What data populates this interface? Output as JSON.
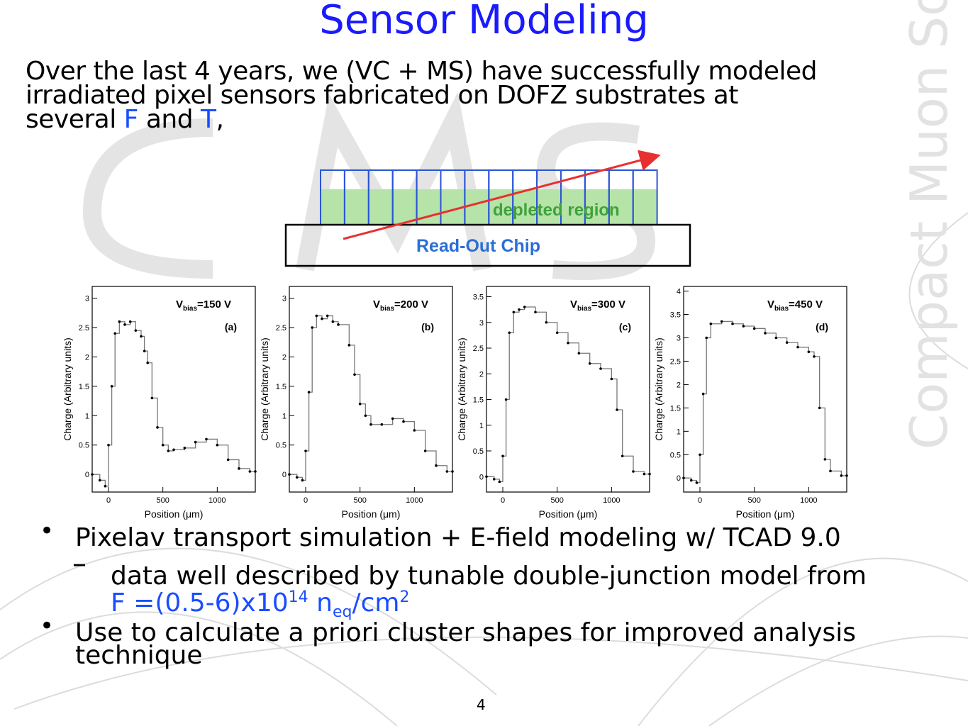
{
  "slide": {
    "title": "Sensor Modeling",
    "intro_line1": "Over the last 4 years, we (VC + MS) have successfully modeled",
    "intro_line2": "irradiated pixel sensors fabricated on DOFZ substrates at",
    "intro_line3_a": "several ",
    "intro_line3_F": "F",
    "intro_line3_b": " and ",
    "intro_line3_T": "T",
    "intro_line3_c": ",",
    "watermark": "Compact Muon Solenoid",
    "page_number": "4",
    "accent_color": "#1a1aff"
  },
  "diagram": {
    "depleted_label": "depleted region",
    "chip_label": "Read-Out Chip"
  },
  "plots": [
    {
      "vbias": "150 V",
      "tag": "(a)"
    },
    {
      "vbias": "200 V",
      "tag": "(b)"
    },
    {
      "vbias": "300 V",
      "tag": "(c)"
    },
    {
      "vbias": "450 V",
      "tag": "(d)"
    }
  ],
  "plot_axes": {
    "ylabel": "Charge (Arbitrary units)",
    "xlabel": "Position (μm)",
    "vbias_prefix": "V",
    "vbias_sub": "bias",
    "x_ticks": [
      "0",
      "500",
      "1000"
    ]
  },
  "bullets": {
    "b1": "Pixelav transport simulation + E-field modeling w/ TCAD 9.0",
    "b2": "data well described by tunable double-junction model from",
    "b2_fluence_a": "F =(0.5-6)x10",
    "b2_fluence_exp": "14",
    "b2_fluence_b": " n",
    "b2_fluence_sub": "eq",
    "b2_fluence_c": "/cm",
    "b2_fluence_exp2": "2",
    "b3_line1": "Use to calculate a priori cluster shapes for improved analysis",
    "b3_line2": "technique",
    "bullet_symbol": "•",
    "dash_symbol": "–"
  },
  "chart_data": [
    {
      "type": "line",
      "title": "",
      "xlabel": "Position (μm)",
      "ylabel": "Charge (Arbitrary units)",
      "xlim": [
        -150,
        1350
      ],
      "ylim": [
        -0.3,
        3.2
      ],
      "yticks": [
        0,
        0.5,
        1,
        1.5,
        2,
        2.5,
        3
      ],
      "x": [
        -150,
        -80,
        -30,
        0,
        30,
        60,
        100,
        150,
        200,
        250,
        300,
        330,
        360,
        400,
        450,
        500,
        550,
        600,
        700,
        800,
        900,
        1000,
        1100,
        1200,
        1300,
        1350
      ],
      "y": [
        0.0,
        -0.1,
        -0.2,
        0.5,
        1.5,
        2.4,
        2.6,
        2.55,
        2.6,
        2.45,
        2.35,
        2.1,
        1.9,
        1.3,
        0.8,
        0.5,
        0.4,
        0.42,
        0.45,
        0.55,
        0.6,
        0.5,
        0.25,
        0.1,
        0.05,
        0.05
      ]
    },
    {
      "type": "line",
      "title": "",
      "xlabel": "Position (μm)",
      "ylabel": "Charge (Arbitrary units)",
      "xlim": [
        -150,
        1350
      ],
      "ylim": [
        -0.3,
        3.2
      ],
      "yticks": [
        0,
        0.5,
        1,
        1.5,
        2,
        2.5,
        3
      ],
      "x": [
        -150,
        -80,
        -30,
        0,
        30,
        60,
        100,
        150,
        200,
        250,
        300,
        400,
        450,
        500,
        550,
        600,
        700,
        800,
        900,
        1000,
        1100,
        1200,
        1300,
        1350
      ],
      "y": [
        0.0,
        -0.05,
        -0.1,
        0.4,
        1.4,
        2.5,
        2.7,
        2.65,
        2.7,
        2.6,
        2.55,
        2.2,
        1.7,
        1.2,
        1.0,
        0.85,
        0.85,
        0.95,
        0.9,
        0.75,
        0.4,
        0.15,
        0.05,
        0.05
      ]
    },
    {
      "type": "line",
      "title": "",
      "xlabel": "Position (μm)",
      "ylabel": "Charge (Arbitrary units)",
      "xlim": [
        -150,
        1350
      ],
      "ylim": [
        -0.3,
        3.7
      ],
      "yticks": [
        0,
        0.5,
        1,
        1.5,
        2,
        2.5,
        3,
        3.5
      ],
      "x": [
        -150,
        -80,
        -30,
        0,
        30,
        60,
        100,
        150,
        200,
        300,
        400,
        500,
        600,
        700,
        800,
        900,
        1000,
        1050,
        1100,
        1200,
        1300,
        1350
      ],
      "y": [
        0.0,
        -0.05,
        -0.1,
        0.4,
        1.5,
        2.8,
        3.2,
        3.25,
        3.3,
        3.2,
        3.0,
        2.8,
        2.6,
        2.4,
        2.2,
        2.1,
        1.9,
        1.3,
        0.4,
        0.1,
        0.05,
        0.05
      ]
    },
    {
      "type": "line",
      "title": "",
      "xlabel": "Position (μm)",
      "ylabel": "Charge (Arbitrary units)",
      "xlim": [
        -150,
        1350
      ],
      "ylim": [
        -0.3,
        4.1
      ],
      "yticks": [
        0,
        0.5,
        1,
        1.5,
        2,
        2.5,
        3,
        3.5,
        4
      ],
      "x": [
        -150,
        -80,
        -30,
        0,
        30,
        60,
        100,
        200,
        300,
        400,
        500,
        600,
        700,
        800,
        900,
        1000,
        1050,
        1100,
        1150,
        1200,
        1300,
        1350
      ],
      "y": [
        0.0,
        -0.05,
        -0.1,
        0.5,
        1.8,
        3.0,
        3.3,
        3.35,
        3.3,
        3.25,
        3.2,
        3.1,
        3.0,
        2.9,
        2.8,
        2.7,
        2.6,
        1.5,
        0.4,
        0.15,
        0.05,
        0.05
      ]
    }
  ]
}
